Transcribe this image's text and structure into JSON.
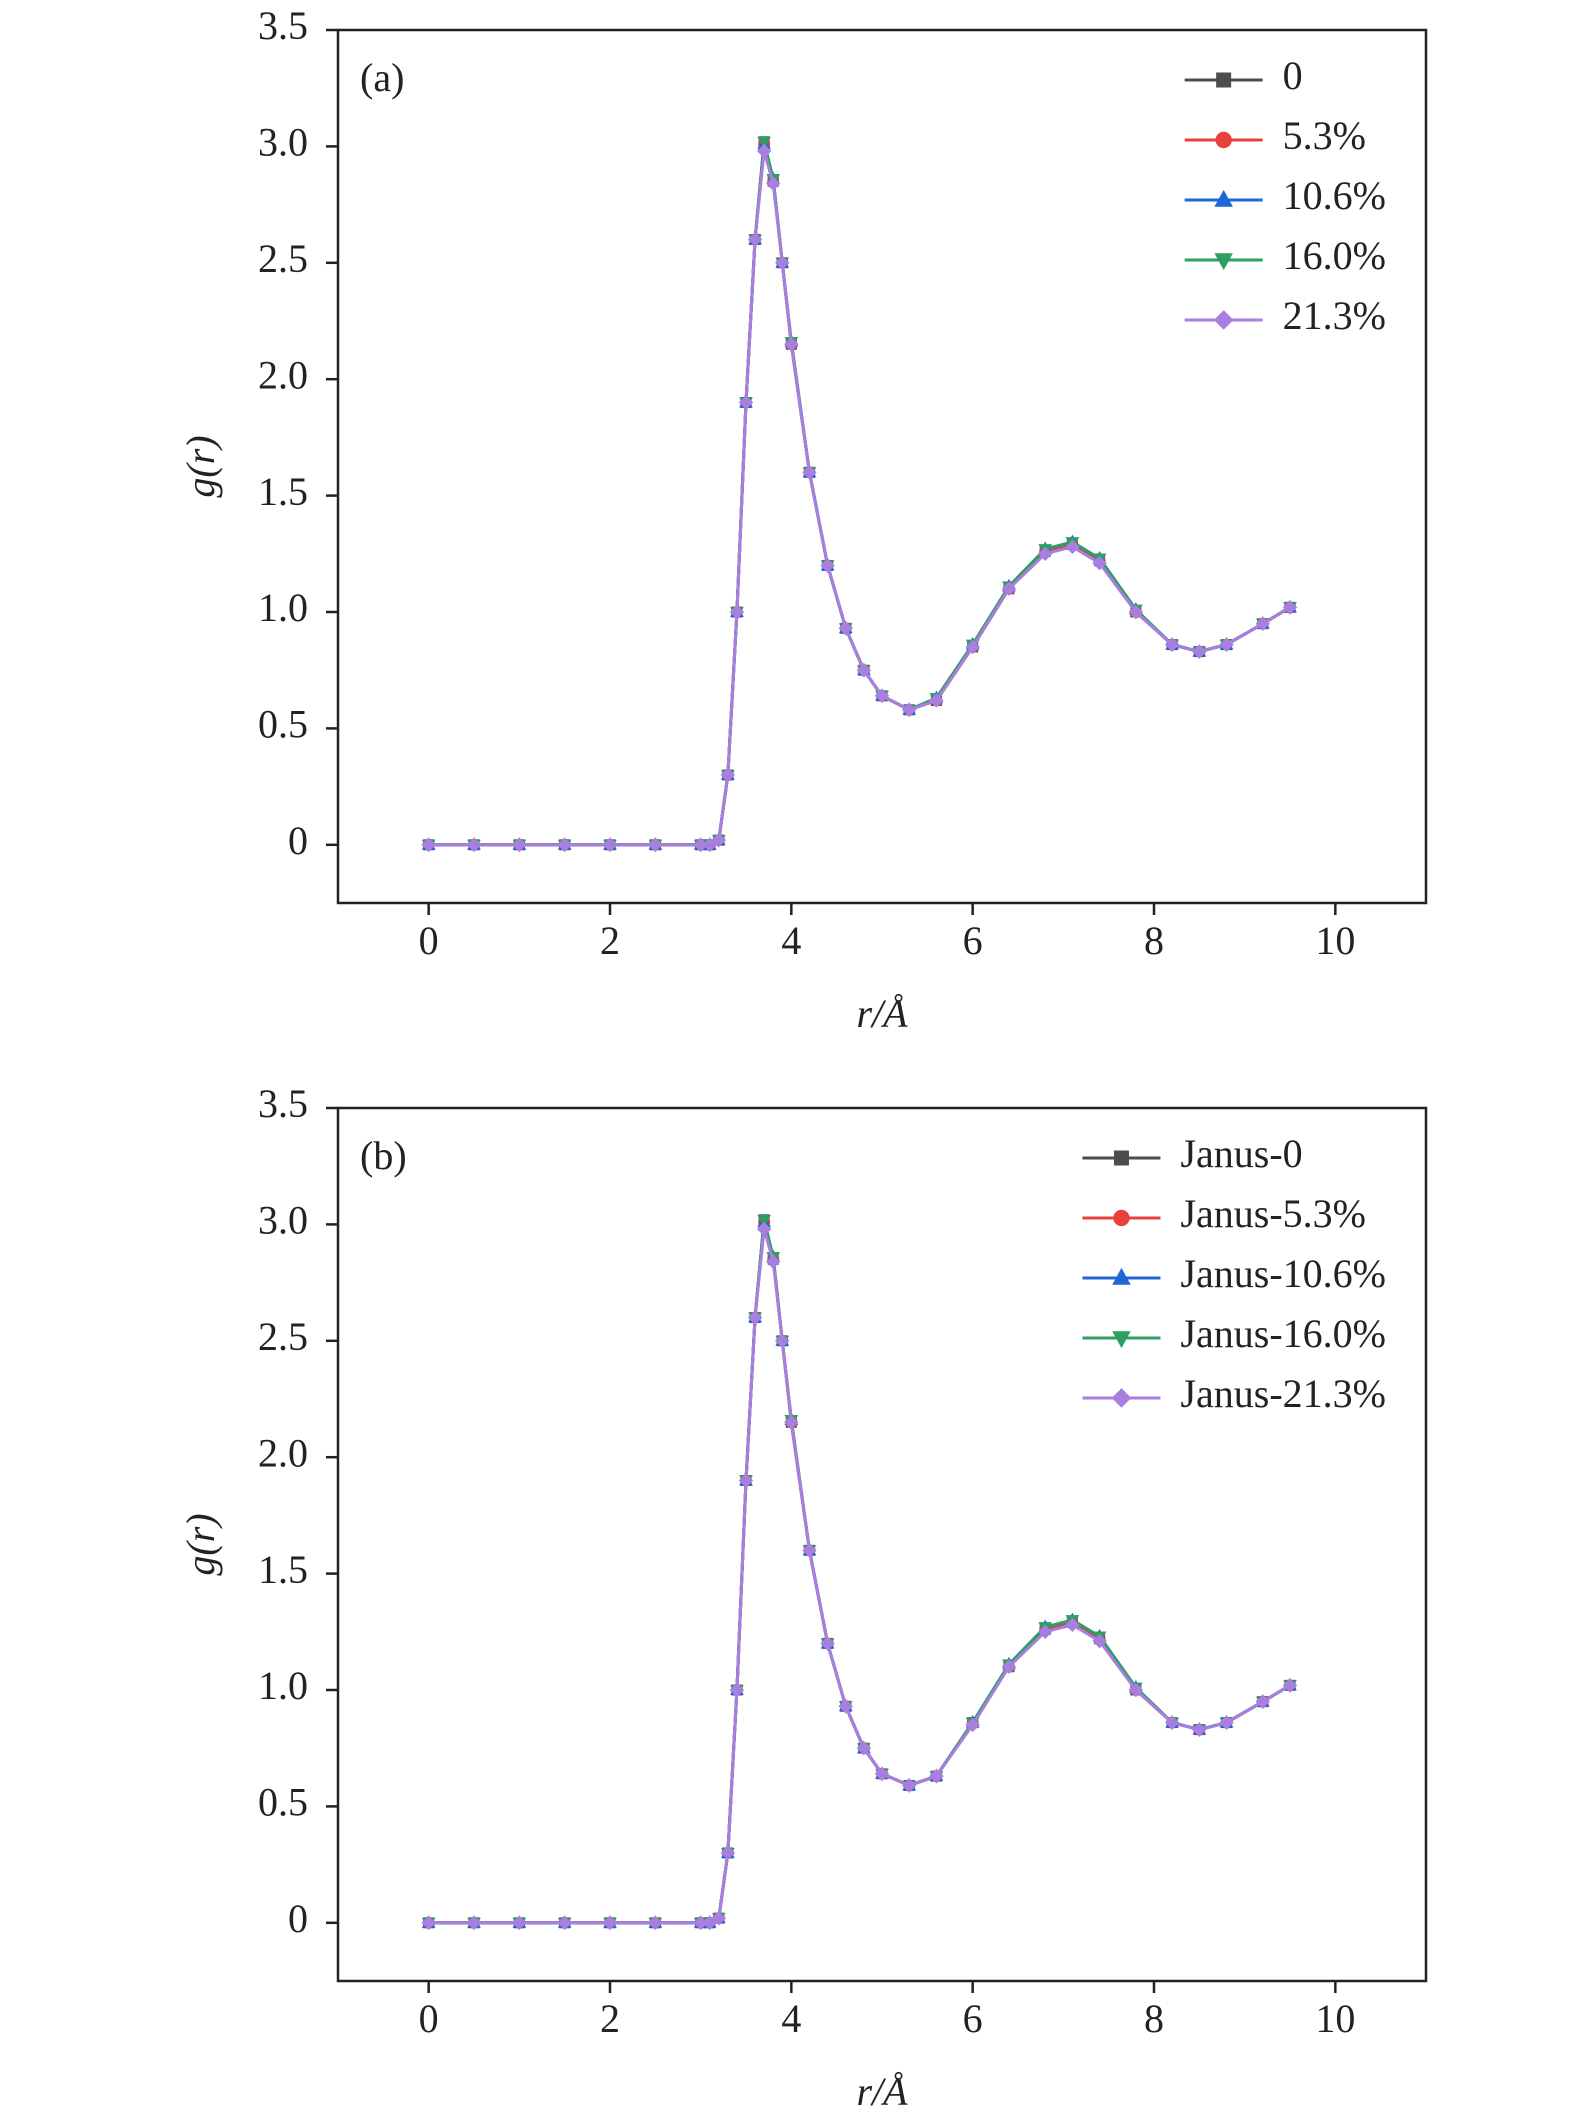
{
  "chart_data": [
    {
      "type": "line",
      "panel_label": "(a)",
      "x_label": "r/Å",
      "y_label": "g(r)",
      "x": [
        0,
        0.5,
        1,
        1.5,
        2,
        2.5,
        3,
        3.1,
        3.2,
        3.3,
        3.4,
        3.5,
        3.6,
        3.7,
        3.8,
        3.9,
        4.0,
        4.2,
        4.4,
        4.6,
        4.8,
        5.0,
        5.3,
        5.6,
        6.0,
        6.4,
        6.8,
        7.1,
        7.4,
        7.8,
        8.2,
        8.5,
        8.8,
        9.2,
        9.5
      ],
      "series": [
        {
          "name": "0",
          "color": "#4d4d4d",
          "marker": "square",
          "values": [
            0,
            0,
            0,
            0,
            0,
            0,
            0,
            0,
            0.02,
            0.3,
            1.0,
            1.9,
            2.6,
            3.02,
            2.85,
            2.5,
            2.15,
            1.6,
            1.2,
            0.93,
            0.75,
            0.64,
            0.58,
            0.62,
            0.85,
            1.1,
            1.26,
            1.29,
            1.22,
            1.0,
            0.86,
            0.83,
            0.86,
            0.95,
            1.02
          ]
        },
        {
          "name": "5.3%",
          "color": "#e8413c",
          "marker": "circle",
          "values": [
            0,
            0,
            0,
            0,
            0,
            0,
            0,
            0,
            0.02,
            0.3,
            1.0,
            1.9,
            2.6,
            3.01,
            2.85,
            2.5,
            2.15,
            1.6,
            1.2,
            0.93,
            0.75,
            0.64,
            0.58,
            0.62,
            0.85,
            1.1,
            1.26,
            1.29,
            1.22,
            1.0,
            0.86,
            0.83,
            0.86,
            0.95,
            1.02
          ]
        },
        {
          "name": "10.6%",
          "color": "#1f66d6",
          "marker": "triangle-up",
          "values": [
            0,
            0,
            0,
            0,
            0,
            0,
            0,
            0,
            0.02,
            0.3,
            1.0,
            1.9,
            2.6,
            3.01,
            2.86,
            2.5,
            2.16,
            1.6,
            1.2,
            0.93,
            0.75,
            0.64,
            0.58,
            0.63,
            0.86,
            1.11,
            1.27,
            1.3,
            1.23,
            1.01,
            0.86,
            0.83,
            0.86,
            0.95,
            1.02
          ]
        },
        {
          "name": "16.0%",
          "color": "#2e9e63",
          "marker": "triangle-down",
          "values": [
            0,
            0,
            0,
            0,
            0,
            0,
            0,
            0,
            0.02,
            0.3,
            1.0,
            1.9,
            2.6,
            3.02,
            2.86,
            2.5,
            2.16,
            1.6,
            1.2,
            0.93,
            0.75,
            0.64,
            0.58,
            0.63,
            0.86,
            1.11,
            1.27,
            1.3,
            1.23,
            1.01,
            0.86,
            0.83,
            0.86,
            0.95,
            1.02
          ]
        },
        {
          "name": "21.3%",
          "color": "#a87ee0",
          "marker": "diamond",
          "values": [
            0,
            0,
            0,
            0,
            0,
            0,
            0,
            0,
            0.02,
            0.3,
            1.0,
            1.9,
            2.6,
            2.98,
            2.84,
            2.5,
            2.15,
            1.6,
            1.2,
            0.93,
            0.75,
            0.64,
            0.58,
            0.62,
            0.85,
            1.1,
            1.25,
            1.28,
            1.21,
            1.0,
            0.86,
            0.83,
            0.86,
            0.95,
            1.02
          ]
        }
      ],
      "xlim": [
        -1,
        11
      ],
      "ylim": [
        -0.25,
        3.5
      ],
      "xticks": [
        0,
        2,
        4,
        6,
        8,
        10
      ],
      "yticks": [
        0,
        0.5,
        {
          "value": 1,
          "label": "1.0"
        },
        1.5,
        {
          "value": 2,
          "label": "2.0"
        },
        2.5,
        {
          "value": 3,
          "label": "3.0"
        },
        3.5
      ],
      "legend": "upper right"
    },
    {
      "type": "line",
      "panel_label": "(b)",
      "x_label": "r/Å",
      "y_label": "g(r)",
      "x": [
        0,
        0.5,
        1,
        1.5,
        2,
        2.5,
        3,
        3.1,
        3.2,
        3.3,
        3.4,
        3.5,
        3.6,
        3.7,
        3.8,
        3.9,
        4.0,
        4.2,
        4.4,
        4.6,
        4.8,
        5.0,
        5.3,
        5.6,
        6.0,
        6.4,
        6.8,
        7.1,
        7.4,
        7.8,
        8.2,
        8.5,
        8.8,
        9.2,
        9.5
      ],
      "series": [
        {
          "name": "Janus-0",
          "color": "#4d4d4d",
          "marker": "square",
          "values": [
            0,
            0,
            0,
            0,
            0,
            0,
            0,
            0,
            0.02,
            0.3,
            1.0,
            1.9,
            2.6,
            3.02,
            2.85,
            2.5,
            2.15,
            1.6,
            1.2,
            0.93,
            0.75,
            0.64,
            0.59,
            0.63,
            0.86,
            1.1,
            1.26,
            1.29,
            1.22,
            1.0,
            0.86,
            0.83,
            0.86,
            0.95,
            1.02
          ]
        },
        {
          "name": "Janus-5.3%",
          "color": "#e8413c",
          "marker": "circle",
          "values": [
            0,
            0,
            0,
            0,
            0,
            0,
            0,
            0,
            0.02,
            0.3,
            1.0,
            1.9,
            2.6,
            3.01,
            2.85,
            2.5,
            2.15,
            1.6,
            1.2,
            0.93,
            0.75,
            0.64,
            0.59,
            0.63,
            0.86,
            1.1,
            1.26,
            1.29,
            1.22,
            1.0,
            0.86,
            0.83,
            0.86,
            0.95,
            1.02
          ]
        },
        {
          "name": "Janus-10.6%",
          "color": "#1f66d6",
          "marker": "triangle-up",
          "values": [
            0,
            0,
            0,
            0,
            0,
            0,
            0,
            0,
            0.02,
            0.3,
            1.0,
            1.9,
            2.6,
            3.01,
            2.86,
            2.5,
            2.16,
            1.6,
            1.2,
            0.93,
            0.75,
            0.64,
            0.59,
            0.63,
            0.86,
            1.11,
            1.27,
            1.3,
            1.23,
            1.01,
            0.86,
            0.83,
            0.86,
            0.95,
            1.02
          ]
        },
        {
          "name": "Janus-16.0%",
          "color": "#2e9e63",
          "marker": "triangle-down",
          "values": [
            0,
            0,
            0,
            0,
            0,
            0,
            0,
            0,
            0.02,
            0.3,
            1.0,
            1.9,
            2.6,
            3.02,
            2.86,
            2.5,
            2.16,
            1.6,
            1.2,
            0.93,
            0.75,
            0.64,
            0.59,
            0.63,
            0.86,
            1.11,
            1.27,
            1.3,
            1.23,
            1.01,
            0.86,
            0.83,
            0.86,
            0.95,
            1.02
          ]
        },
        {
          "name": "Janus-21.3%",
          "color": "#a87ee0",
          "marker": "diamond",
          "values": [
            0,
            0,
            0,
            0,
            0,
            0,
            0,
            0,
            0.02,
            0.3,
            1.0,
            1.9,
            2.6,
            2.98,
            2.84,
            2.5,
            2.15,
            1.6,
            1.2,
            0.93,
            0.75,
            0.64,
            0.59,
            0.63,
            0.85,
            1.1,
            1.25,
            1.28,
            1.21,
            1.0,
            0.86,
            0.83,
            0.86,
            0.95,
            1.02
          ]
        }
      ],
      "xlim": [
        -1,
        11
      ],
      "ylim": [
        -0.25,
        3.5
      ],
      "xticks": [
        0,
        2,
        4,
        6,
        8,
        10
      ],
      "yticks": [
        0,
        0.5,
        {
          "value": 1,
          "label": "1.0"
        },
        1.5,
        {
          "value": 2,
          "label": "2.0"
        },
        2.5,
        {
          "value": 3,
          "label": "3.0"
        },
        3.5
      ],
      "legend": "upper right"
    }
  ]
}
